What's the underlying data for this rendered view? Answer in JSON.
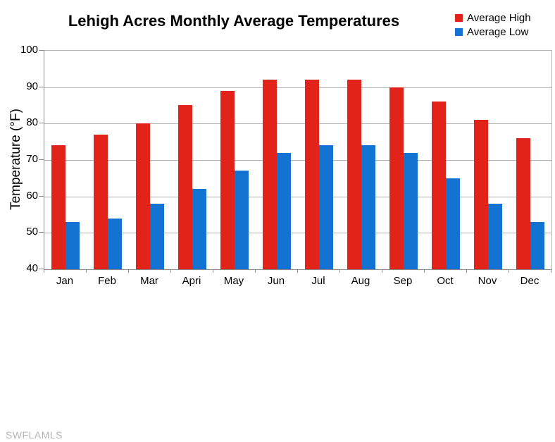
{
  "title": "Lehigh Acres Monthly Average Temperatures",
  "watermark": "SWFLAMLS",
  "colors": {
    "average_high": "#e2231a",
    "average_low": "#1273d2",
    "gridline": "#b2b2b2",
    "axis": "#8c8c8c",
    "text": "#000000",
    "watermark": "#b5b5b5"
  },
  "chart_data": {
    "type": "bar",
    "title": "Lehigh Acres Monthly Average Temperatures",
    "categories": [
      "Jan",
      "Feb",
      "Mar",
      "Apri",
      "May",
      "Jun",
      "Jul",
      "Aug",
      "Sep",
      "Oct",
      "Nov",
      "Dec"
    ],
    "series": [
      {
        "name": "Average High",
        "color": "#e2231a",
        "values": [
          74,
          77,
          80,
          85,
          89,
          92,
          92,
          92,
          90,
          86,
          81,
          76
        ]
      },
      {
        "name": "Average Low",
        "color": "#1273d2",
        "values": [
          53,
          54,
          58,
          62,
          67,
          72,
          74,
          74,
          72,
          65,
          58,
          53
        ]
      }
    ],
    "xlabel": "",
    "ylabel": "Temperature (°F)",
    "ylim": [
      40,
      100
    ],
    "yticks": [
      40,
      50,
      60,
      70,
      80,
      90,
      100
    ],
    "grid": "horizontal",
    "legend_position": "top-right"
  }
}
